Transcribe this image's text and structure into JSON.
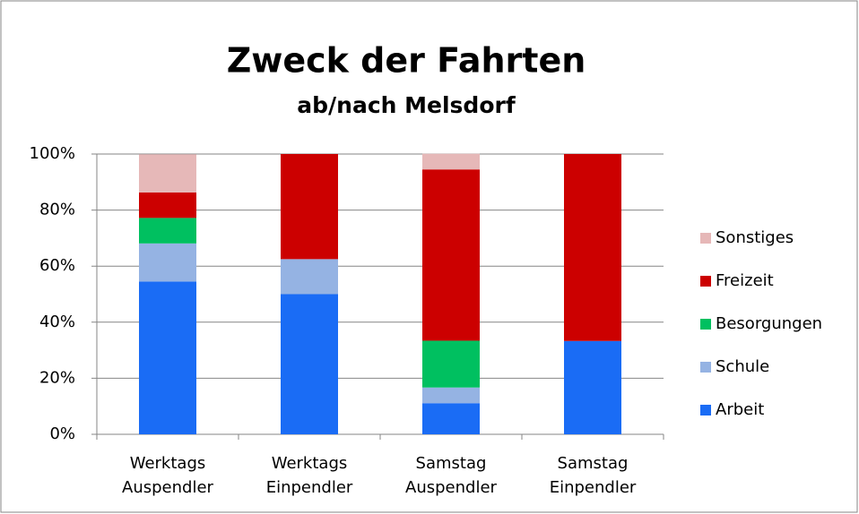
{
  "chart_data": {
    "type": "stacked_bar",
    "title": "Zweck der Fahrten",
    "subtitle": "ab/nach Melsdorf",
    "categories": [
      [
        "Werktags",
        "Auspendler"
      ],
      [
        "Werktags",
        "Einpendler"
      ],
      [
        "Samstag",
        "Auspendler"
      ],
      [
        "Samstag",
        "Einpendler"
      ]
    ],
    "series": [
      {
        "name": "Arbeit",
        "color": "#1a6cf5",
        "values": [
          54.5,
          50,
          11.1,
          33.3
        ]
      },
      {
        "name": "Schule",
        "color": "#95b3e3",
        "values": [
          13.6,
          12.5,
          5.6,
          0
        ]
      },
      {
        "name": "Besorgungen",
        "color": "#00c060",
        "values": [
          9.1,
          0,
          16.7,
          0
        ]
      },
      {
        "name": "Freizeit",
        "color": "#cc0000",
        "values": [
          9.1,
          37.5,
          61.1,
          66.7
        ]
      },
      {
        "name": "Sonstiges",
        "color": "#e6b8b8",
        "values": [
          13.6,
          0,
          5.6,
          0
        ]
      }
    ],
    "ylim": [
      0,
      100
    ],
    "yticks": [
      {
        "value": 0,
        "label": "0%"
      },
      {
        "value": 20,
        "label": "20%"
      },
      {
        "value": 40,
        "label": "40%"
      },
      {
        "value": 60,
        "label": "60%"
      },
      {
        "value": 80,
        "label": "80%"
      },
      {
        "value": 100,
        "label": "100%"
      }
    ],
    "grid": true,
    "legend": "right"
  }
}
